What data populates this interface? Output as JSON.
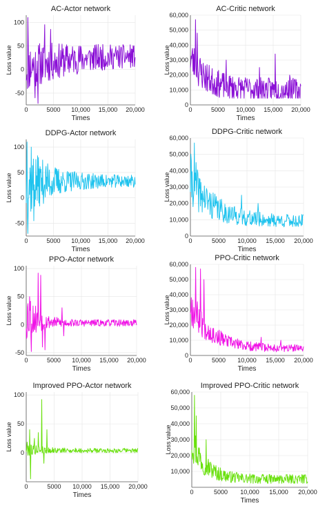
{
  "chart_data": [
    {
      "type": "line",
      "title": "AC-Actor network",
      "xlabel": "Times",
      "ylabel": "Loss value",
      "color": "#8a0fd6",
      "xlim": [
        0,
        20000
      ],
      "ylim": [
        -75,
        115
      ],
      "xticks": [
        {
          "value": 0,
          "label": "0"
        },
        {
          "value": 5000,
          "label": "5000"
        },
        {
          "value": 10000,
          "label": "10,000"
        },
        {
          "value": 15000,
          "label": "15,000"
        },
        {
          "value": 20000,
          "label": "20,000"
        }
      ],
      "yticks": [
        {
          "value": -50,
          "label": "-50"
        },
        {
          "value": 0,
          "label": "0"
        },
        {
          "value": 50,
          "label": "50"
        },
        {
          "value": 100,
          "label": "100"
        }
      ],
      "gen": {
        "seed": 11,
        "n": 260,
        "start": 5,
        "end": 30,
        "decay": 0.4,
        "noiseStart": 55,
        "noiseEnd": 22,
        "spikes": [
          [
            300,
            110
          ],
          [
            1600,
            -60
          ],
          [
            2200,
            -72
          ],
          [
            3400,
            95
          ],
          [
            4500,
            85
          ]
        ],
        "clamp": [
          -72,
          112
        ]
      }
    },
    {
      "type": "line",
      "title": "AC-Critic network",
      "xlabel": "Times",
      "ylabel": "Loss value",
      "color": "#8a0fd6",
      "xlim": [
        0,
        20000
      ],
      "ylim": [
        0,
        60000
      ],
      "xticks": [
        {
          "value": 0,
          "label": "0"
        },
        {
          "value": 5000,
          "label": "5000"
        },
        {
          "value": 10000,
          "label": "10,000"
        },
        {
          "value": 15000,
          "label": "15,000"
        },
        {
          "value": 20000,
          "label": "20,000"
        }
      ],
      "yticks": [
        {
          "value": 0,
          "label": "0"
        },
        {
          "value": 10000,
          "label": "10,000"
        },
        {
          "value": 20000,
          "label": "20,000"
        },
        {
          "value": 30000,
          "label": "30,000"
        },
        {
          "value": 40000,
          "label": "40,000"
        },
        {
          "value": 50000,
          "label": "50,000"
        },
        {
          "value": 60000,
          "label": "60,000"
        }
      ],
      "gen": {
        "seed": 23,
        "n": 260,
        "start": 32000,
        "end": 10000,
        "decay": 0.15,
        "noiseStart": 14000,
        "noiseEnd": 8000,
        "spikes": [
          [
            900,
            57000
          ],
          [
            1200,
            48000
          ],
          [
            6500,
            30000
          ],
          [
            12500,
            25000
          ],
          [
            15400,
            34000
          ],
          [
            18000,
            20000
          ]
        ],
        "clamp": [
          4500,
          58000
        ]
      }
    },
    {
      "type": "line",
      "title": "DDPG-Actor network",
      "xlabel": "Times",
      "ylabel": "Loss value",
      "color": "#1fc3ee",
      "xlim": [
        0,
        20000
      ],
      "ylim": [
        -75,
        115
      ],
      "xticks": [
        {
          "value": 0,
          "label": "0"
        },
        {
          "value": 5000,
          "label": "5000"
        },
        {
          "value": 10000,
          "label": "10,000"
        },
        {
          "value": 15000,
          "label": "15,000"
        },
        {
          "value": 20000,
          "label": "20,000"
        }
      ],
      "yticks": [
        {
          "value": -50,
          "label": "-50"
        },
        {
          "value": 0,
          "label": "0"
        },
        {
          "value": 50,
          "label": "50"
        },
        {
          "value": 100,
          "label": "100"
        }
      ],
      "gen": {
        "seed": 37,
        "n": 260,
        "start": 30,
        "end": 33,
        "decay": 0.2,
        "noiseStart": 80,
        "noiseEnd": 12,
        "spikes": [
          [
            150,
            110
          ],
          [
            300,
            -70
          ],
          [
            900,
            100
          ],
          [
            1400,
            -45
          ]
        ],
        "clamp": [
          -72,
          112
        ]
      }
    },
    {
      "type": "line",
      "title": "DDPG-Critic network",
      "xlabel": "Times",
      "ylabel": "Loss value",
      "color": "#1fc3ee",
      "xlim": [
        0,
        20000
      ],
      "ylim": [
        0,
        60000
      ],
      "xticks": [
        {
          "value": 0,
          "label": "0"
        },
        {
          "value": 5000,
          "label": "5000"
        },
        {
          "value": 10000,
          "label": "10,000"
        },
        {
          "value": 15000,
          "label": "15,000"
        },
        {
          "value": 20000,
          "label": "20,000"
        }
      ],
      "yticks": [
        {
          "value": 0,
          "label": "0"
        },
        {
          "value": 10000,
          "label": "10,000"
        },
        {
          "value": 20000,
          "label": "20,000"
        },
        {
          "value": 30000,
          "label": "30,000"
        },
        {
          "value": 40000,
          "label": "40,000"
        },
        {
          "value": 50000,
          "label": "50,000"
        },
        {
          "value": 60000,
          "label": "60,000"
        }
      ],
      "gen": {
        "seed": 41,
        "n": 260,
        "start": 35000,
        "end": 9000,
        "decay": 0.2,
        "noiseStart": 16000,
        "noiseEnd": 4000,
        "spikes": [
          [
            700,
            57000
          ],
          [
            1000,
            45000
          ],
          [
            9000,
            25000
          ],
          [
            12000,
            20000
          ]
        ],
        "clamp": [
          3500,
          58000
        ]
      }
    },
    {
      "type": "line",
      "title": "PPO-Actor network",
      "xlabel": "Times",
      "ylabel": "Loss value",
      "color": "#f014e6",
      "xlim": [
        0,
        20000
      ],
      "ylim": [
        -55,
        105
      ],
      "xticks": [
        {
          "value": 0,
          "label": "0"
        },
        {
          "value": 5000,
          "label": "5000"
        },
        {
          "value": 10000,
          "label": "10,000"
        },
        {
          "value": 15000,
          "label": "15,000"
        },
        {
          "value": 20000,
          "label": "20,000"
        }
      ],
      "yticks": [
        {
          "value": -50,
          "label": "-50"
        },
        {
          "value": 0,
          "label": "0"
        },
        {
          "value": 50,
          "label": "50"
        },
        {
          "value": 100,
          "label": "100"
        }
      ],
      "gen": {
        "seed": 53,
        "n": 260,
        "start": 20,
        "end": 3,
        "decay": 0.1,
        "noiseStart": 55,
        "noiseEnd": 6,
        "spikes": [
          [
            600,
            50
          ],
          [
            900,
            -48
          ],
          [
            2200,
            92
          ],
          [
            2600,
            88
          ],
          [
            2900,
            -40
          ],
          [
            3400,
            -45
          ],
          [
            6500,
            30
          ],
          [
            6800,
            -20
          ]
        ],
        "clamp": [
          -50,
          95
        ]
      }
    },
    {
      "type": "line",
      "title": "PPO-Critic network",
      "xlabel": "Times",
      "ylabel": "Loss value",
      "color": "#f014e6",
      "xlim": [
        0,
        20000
      ],
      "ylim": [
        0,
        60000
      ],
      "xticks": [
        {
          "value": 0,
          "label": "0"
        },
        {
          "value": 5000,
          "label": "5000"
        },
        {
          "value": 10000,
          "label": "10,000"
        },
        {
          "value": 15000,
          "label": "15,000"
        },
        {
          "value": 20000,
          "label": "20,000"
        }
      ],
      "yticks": [
        {
          "value": 0,
          "label": "0"
        },
        {
          "value": 10000,
          "label": "10,000"
        },
        {
          "value": 20000,
          "label": "20,000"
        },
        {
          "value": 30000,
          "label": "30,000"
        },
        {
          "value": 40000,
          "label": "40,000"
        },
        {
          "value": 50000,
          "label": "50,000"
        },
        {
          "value": 60000,
          "label": "60,000"
        }
      ],
      "gen": {
        "seed": 67,
        "n": 260,
        "start": 34000,
        "end": 4500,
        "decay": 0.18,
        "noiseStart": 14000,
        "noiseEnd": 2500,
        "spikes": [
          [
            900,
            58000
          ],
          [
            1800,
            57000
          ],
          [
            2400,
            50000
          ],
          [
            12500,
            12000
          ],
          [
            16000,
            10000
          ]
        ],
        "clamp": [
          2000,
          58000
        ]
      }
    },
    {
      "type": "line",
      "title": "Improved PPO-Actor network",
      "xlabel": "Times",
      "ylabel": "Loss value",
      "color": "#6ae00e",
      "xlim": [
        0,
        20000
      ],
      "ylim": [
        -50,
        105
      ],
      "xticks": [
        {
          "value": 0,
          "label": "0"
        },
        {
          "value": 5000,
          "label": "5000"
        },
        {
          "value": 10000,
          "label": "10,000"
        },
        {
          "value": 15000,
          "label": "15,000"
        },
        {
          "value": 20000,
          "label": "20,000"
        }
      ],
      "yticks": [
        {
          "value": 0,
          "label": "0"
        },
        {
          "value": 50,
          "label": "50"
        },
        {
          "value": 100,
          "label": "100"
        }
      ],
      "gen": {
        "seed": 79,
        "n": 260,
        "start": 8,
        "end": 4,
        "decay": 0.1,
        "noiseStart": 14,
        "noiseEnd": 4,
        "spikes": [
          [
            600,
            40
          ],
          [
            800,
            -45
          ],
          [
            1500,
            25
          ],
          [
            2200,
            35
          ],
          [
            2800,
            92
          ],
          [
            3200,
            -18
          ],
          [
            3700,
            40
          ]
        ],
        "clamp": [
          -48,
          95
        ]
      }
    },
    {
      "type": "line",
      "title": "Improved PPO-Critic network",
      "xlabel": "Times",
      "ylabel": "Loss value",
      "color": "#6ae00e",
      "xlim": [
        0,
        20000
      ],
      "ylim": [
        0,
        60000
      ],
      "xticks": [
        {
          "value": 0,
          "label": "0"
        },
        {
          "value": 5000,
          "label": "5000"
        },
        {
          "value": 10000,
          "label": "10,000"
        },
        {
          "value": 15000,
          "label": "15,000"
        },
        {
          "value": 20000,
          "label": "20,000"
        }
      ],
      "yticks": [
        {
          "value": 10000,
          "label": "10,000"
        },
        {
          "value": 20000,
          "label": "20,000"
        },
        {
          "value": 30000,
          "label": "30,000"
        },
        {
          "value": 40000,
          "label": "40,000"
        },
        {
          "value": 50000,
          "label": "50,000"
        },
        {
          "value": 60000,
          "label": "60,000"
        }
      ],
      "gen": {
        "seed": 97,
        "n": 260,
        "start": 30000,
        "end": 5000,
        "decay": 0.12,
        "noiseStart": 14000,
        "noiseEnd": 3000,
        "spikes": [
          [
            500,
            58000
          ],
          [
            800,
            45000
          ],
          [
            2500,
            30000
          ],
          [
            19000,
            8000
          ]
        ],
        "clamp": [
          2500,
          58000
        ]
      }
    }
  ]
}
